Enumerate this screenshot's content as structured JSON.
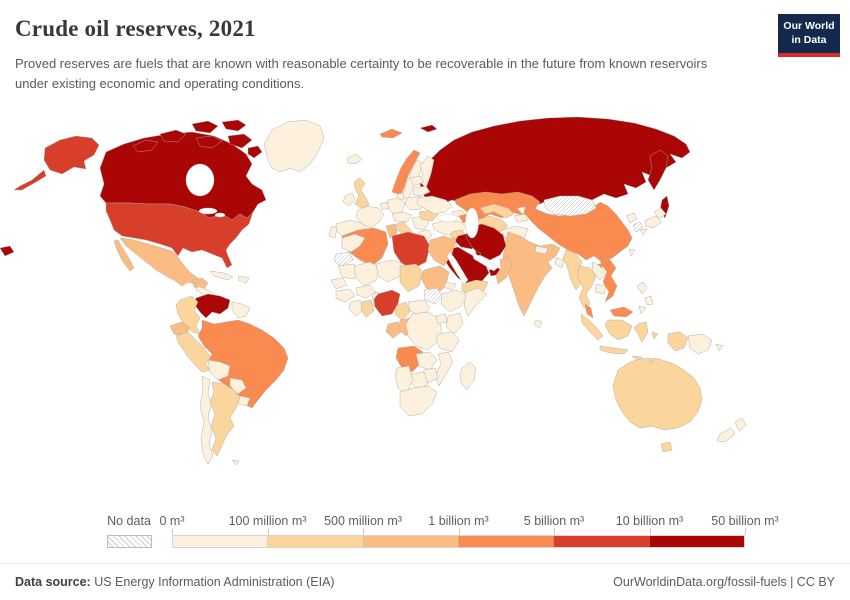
{
  "header": {
    "title": "Crude oil reserves, 2021",
    "subtitle": "Proved reserves are fuels that are known with reasonable certainty to be recoverable in the future from known reservoirs under existing economic and operating conditions.",
    "logo_line1": "Our World",
    "logo_line2": "in Data",
    "logo_bg": "#13294d",
    "logo_accent": "#dc2d20"
  },
  "legend": {
    "no_data_label": "No data"
  },
  "footer": {
    "source_label": "Data source:",
    "source_text": " US Energy Information Administration (EIA)",
    "right_text": "OurWorldinData.org/fossil-fuels | CC BY"
  },
  "chart_data": {
    "type": "choropleth_map",
    "title": "Crude oil reserves, 2021",
    "unit": "m³",
    "legend_position": "bottom",
    "bin_edge_labels": [
      "0 m³",
      "100 million m³",
      "500 million m³",
      "1 billion m³",
      "5 billion m³",
      "10 billion m³",
      "50 billion m³"
    ],
    "bin_colors": [
      "#FDF0DC",
      "#FCD59C",
      "#FBBC84",
      "#F98A50",
      "#D73F2B",
      "#A90605"
    ],
    "no_data_style": "white_diagonal_hatch",
    "country_bins": {
      "canada": 5,
      "russia": 5,
      "venezuela": 5,
      "iraq": 5,
      "iran": 5,
      "saudi_arabia": 5,
      "kuwait": 5,
      "qatar": 5,
      "uae": 5,
      "united_states": 4,
      "libya": 4,
      "nigeria": 4,
      "brazil": 3,
      "china": 3,
      "kazakhstan": 3,
      "norway": 3,
      "algeria": 3,
      "angola": 3,
      "azerbaijan": 3,
      "vietnam": 3,
      "malaysia": 3,
      "mexico": 2,
      "india": 2,
      "ecuador": 2,
      "egypt": 2,
      "oman": 2,
      "sudan": 2,
      "gabon": 2,
      "congo": 2,
      "tunisia": 2,
      "colombia": 1,
      "peru": 1,
      "argentina": 1,
      "united_kingdom": 1,
      "romania": 1,
      "italy": 1,
      "turkmenistan": 1,
      "uzbekistan": 1,
      "syria": 1,
      "yemen": 1,
      "indonesia": 1,
      "australia": 1,
      "thailand": 1,
      "myanmar": 1,
      "chad": 1,
      "ghana": 1,
      "cameroon": 1,
      "greenland": 0,
      "cuba": 0,
      "hispaniola": 0,
      "central_america": 0,
      "guyanas": 0,
      "bolivia": 0,
      "paraguay": 0,
      "chile": 0,
      "uruguay": 0,
      "falkland_islands": 0,
      "iceland": 0,
      "sweden": 0,
      "finland": 0,
      "ireland": 0,
      "denmark": 0,
      "germany": 0,
      "benelux": 0,
      "france": 0,
      "spain": 0,
      "portugal": 0,
      "poland": 0,
      "central_europe": 0,
      "balkans": 0,
      "greece": 0,
      "baltics": 0,
      "belarus": 0,
      "ukraine": 0,
      "turkey": 0,
      "georgia": 0,
      "kyrgyzstan": 0,
      "tajikistan": 0,
      "afghanistan": 0,
      "pakistan": 0,
      "north_korea": 0,
      "japan": 0,
      "taiwan": 0,
      "philippines": 0,
      "sri_lanka": 0,
      "nepal": 0,
      "bangladesh": 0,
      "laos": 0,
      "cambodia": 0,
      "papua_new_guinea": 0,
      "new_zealand": 0,
      "morocco": 0,
      "mauritania": 0,
      "mali": 0,
      "senegal": 0,
      "guinea": 0,
      "ivory_coast": 0,
      "burkina_faso": 0,
      "benin_togo": 0,
      "niger": 0,
      "eritrea": 0,
      "ethiopia": 0,
      "somalia": 0,
      "central_african_republic": 0,
      "drc": 0,
      "uganda": 0,
      "kenya": 0,
      "tanzania": 0,
      "zambia": 0,
      "mozambique": 0,
      "zimbabwe": 0,
      "botswana": 0,
      "namibia": 0,
      "south_africa": 0,
      "madagascar": 0,
      "jordan_israel": 0,
      "mongolia": "no_data",
      "south_sudan": "no_data",
      "western_sahara": "no_data",
      "south_korea": "no_data"
    }
  }
}
